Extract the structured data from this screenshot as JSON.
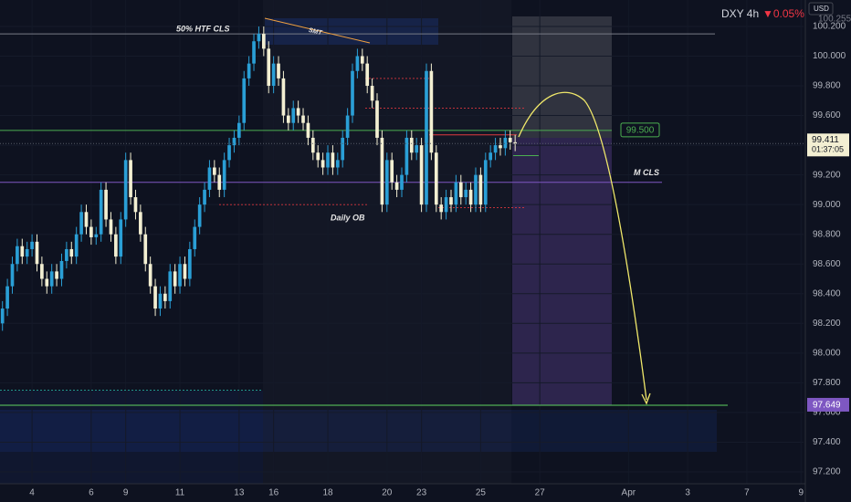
{
  "chart_data": {
    "type": "candlestick",
    "title": "DXY 4h",
    "change": "▼0.05%",
    "currency": "USD",
    "up_color": "#2a9fd6",
    "down_color": "#f3efd2",
    "xlim": [
      -0.5,
      162.5
    ],
    "ylim": [
      97.12,
      100.378
    ],
    "grid": true,
    "xticks": [
      {
        "value": 6,
        "label": "4"
      },
      {
        "value": 18,
        "label": "6"
      },
      {
        "value": 25,
        "label": "9"
      },
      {
        "value": 36,
        "label": "11"
      },
      {
        "value": 48,
        "label": "13"
      },
      {
        "value": 55,
        "label": "16"
      },
      {
        "value": 66,
        "label": "18"
      },
      {
        "value": 78,
        "label": "20"
      },
      {
        "value": 85,
        "label": "23"
      },
      {
        "value": 97,
        "label": "25"
      },
      {
        "value": 109,
        "label": "27"
      },
      {
        "value": 127,
        "label": "Apr"
      },
      {
        "value": 139,
        "label": "3"
      },
      {
        "value": 151,
        "label": "7"
      },
      {
        "value": 162,
        "label": "9"
      }
    ],
    "yticks": [
      {
        "value": 97.2,
        "label": "97.200"
      },
      {
        "value": 97.4,
        "label": "97.400"
      },
      {
        "value": 97.6,
        "label": "97.600"
      },
      {
        "value": 97.8,
        "label": "97.800"
      },
      {
        "value": 98.0,
        "label": "98.000"
      },
      {
        "value": 98.2,
        "label": "98.200"
      },
      {
        "value": 98.4,
        "label": "98.400"
      },
      {
        "value": 98.6,
        "label": "98.600"
      },
      {
        "value": 98.8,
        "label": "98.800"
      },
      {
        "value": 99.0,
        "label": "99.000"
      },
      {
        "value": 99.2,
        "label": "99.200"
      },
      {
        "value": 99.4,
        "label": "99.400"
      },
      {
        "value": 99.6,
        "label": "99.600"
      },
      {
        "value": 99.8,
        "label": "99.800"
      },
      {
        "value": 100.0,
        "label": "100.000"
      },
      {
        "value": 100.2,
        "label": "100.200"
      }
    ],
    "x": [
      0,
      1,
      2,
      3,
      4,
      5,
      6,
      7,
      8,
      9,
      10,
      11,
      12,
      13,
      14,
      15,
      16,
      17,
      18,
      19,
      20,
      21,
      22,
      23,
      24,
      25,
      26,
      27,
      28,
      29,
      30,
      31,
      32,
      33,
      34,
      35,
      36,
      37,
      38,
      39,
      40,
      41,
      42,
      43,
      44,
      45,
      46,
      47,
      48,
      49,
      50,
      51,
      52,
      53,
      54,
      55,
      56,
      57,
      58,
      59,
      60,
      61,
      62,
      63,
      64,
      65,
      66,
      67,
      68,
      69,
      70,
      71,
      72,
      73,
      74,
      75,
      76,
      77,
      78,
      79,
      80,
      81,
      82,
      83,
      84,
      85,
      86,
      87,
      88,
      89,
      90,
      91,
      92,
      93,
      94,
      95,
      96,
      97,
      98,
      99,
      100,
      101,
      102,
      103,
      104
    ],
    "open": [
      98.2,
      98.3,
      98.45,
      98.6,
      98.72,
      98.65,
      98.7,
      98.75,
      98.6,
      98.5,
      98.45,
      98.55,
      98.5,
      98.62,
      98.7,
      98.65,
      98.8,
      98.95,
      98.85,
      98.78,
      98.8,
      99.1,
      98.9,
      98.8,
      98.65,
      98.9,
      99.3,
      99.05,
      98.95,
      98.8,
      98.6,
      98.45,
      98.3,
      98.4,
      98.35,
      98.55,
      98.45,
      98.6,
      98.5,
      98.7,
      98.85,
      99.0,
      99.1,
      99.25,
      99.2,
      99.1,
      99.3,
      99.4,
      99.45,
      99.55,
      99.85,
      99.95,
      100.1,
      100.15,
      100.05,
      99.8,
      99.95,
      99.85,
      99.6,
      99.55,
      99.65,
      99.6,
      99.55,
      99.45,
      99.35,
      99.3,
      99.25,
      99.35,
      99.25,
      99.3,
      99.45,
      99.6,
      99.9,
      100.0,
      99.95,
      99.8,
      99.7,
      99.45,
      99.0,
      99.3,
      99.15,
      99.1,
      99.2,
      99.45,
      99.35,
      99.4,
      99.0,
      99.9,
      99.35,
      99.0,
      98.95,
      99.05,
      99.0,
      99.15,
      99.05,
      99.1,
      99.0,
      99.2,
      99.0,
      99.3,
      99.35,
      99.4,
      99.38,
      99.45,
      99.42
    ],
    "high": [
      98.35,
      98.5,
      98.65,
      98.77,
      98.77,
      98.75,
      98.8,
      98.8,
      98.65,
      98.55,
      98.6,
      98.6,
      98.67,
      98.75,
      98.75,
      98.85,
      99.0,
      99.0,
      98.9,
      98.85,
      99.15,
      99.15,
      98.95,
      98.85,
      98.95,
      99.35,
      99.35,
      99.1,
      99.0,
      98.85,
      98.65,
      98.5,
      98.45,
      98.45,
      98.6,
      98.6,
      98.65,
      98.65,
      98.75,
      98.9,
      99.05,
      99.15,
      99.3,
      99.3,
      99.25,
      99.35,
      99.45,
      99.5,
      99.6,
      99.9,
      100.0,
      100.15,
      100.2,
      100.2,
      100.1,
      100.0,
      100.0,
      99.9,
      99.65,
      99.7,
      99.7,
      99.65,
      99.6,
      99.5,
      99.4,
      99.35,
      99.4,
      99.4,
      99.35,
      99.5,
      99.65,
      99.95,
      100.05,
      100.05,
      100.0,
      99.85,
      99.75,
      99.5,
      99.35,
      99.35,
      99.2,
      99.25,
      99.5,
      99.5,
      99.45,
      99.45,
      99.95,
      99.95,
      99.4,
      99.05,
      99.1,
      99.1,
      99.2,
      99.2,
      99.15,
      99.15,
      99.25,
      99.25,
      99.35,
      99.4,
      99.45,
      99.45,
      99.5,
      99.5,
      99.47
    ],
    "low": [
      98.15,
      98.25,
      98.4,
      98.55,
      98.6,
      98.6,
      98.65,
      98.55,
      98.45,
      98.4,
      98.4,
      98.45,
      98.45,
      98.57,
      98.6,
      98.6,
      98.75,
      98.8,
      98.73,
      98.73,
      98.75,
      98.85,
      98.75,
      98.6,
      98.6,
      98.85,
      99.0,
      98.9,
      98.75,
      98.55,
      98.4,
      98.25,
      98.25,
      98.3,
      98.3,
      98.4,
      98.4,
      98.45,
      98.45,
      98.65,
      98.8,
      98.95,
      99.05,
      99.15,
      99.05,
      99.05,
      99.25,
      99.35,
      99.4,
      99.5,
      99.8,
      99.9,
      100.05,
      100.0,
      99.75,
      99.75,
      99.8,
      99.55,
      99.5,
      99.5,
      99.55,
      99.5,
      99.4,
      99.3,
      99.25,
      99.2,
      99.2,
      99.2,
      99.2,
      99.25,
      99.4,
      99.55,
      99.85,
      99.9,
      99.75,
      99.65,
      99.4,
      98.95,
      98.95,
      99.1,
      99.05,
      99.05,
      99.15,
      99.3,
      99.3,
      98.95,
      98.95,
      99.3,
      98.95,
      98.9,
      98.9,
      98.95,
      98.95,
      99.0,
      99.0,
      98.95,
      98.95,
      98.95,
      98.95,
      99.25,
      99.3,
      99.33,
      99.33,
      99.37,
      99.36
    ],
    "close": [
      98.3,
      98.45,
      98.6,
      98.72,
      98.65,
      98.7,
      98.75,
      98.6,
      98.5,
      98.45,
      98.55,
      98.5,
      98.62,
      98.7,
      98.65,
      98.8,
      98.95,
      98.85,
      98.78,
      98.8,
      99.1,
      98.9,
      98.8,
      98.65,
      98.9,
      99.3,
      99.05,
      98.95,
      98.8,
      98.6,
      98.45,
      98.3,
      98.4,
      98.35,
      98.55,
      98.45,
      98.6,
      98.5,
      98.7,
      98.85,
      99.0,
      99.1,
      99.25,
      99.2,
      99.1,
      99.3,
      99.4,
      99.45,
      99.55,
      99.85,
      99.95,
      100.1,
      100.15,
      100.05,
      99.8,
      99.95,
      99.85,
      99.6,
      99.55,
      99.65,
      99.6,
      99.55,
      99.45,
      99.35,
      99.3,
      99.25,
      99.35,
      99.25,
      99.3,
      99.45,
      99.6,
      99.9,
      100.0,
      99.95,
      99.8,
      99.7,
      99.45,
      99.0,
      99.3,
      99.15,
      99.1,
      99.2,
      99.45,
      99.35,
      99.4,
      99.0,
      99.9,
      99.35,
      99.0,
      98.95,
      99.05,
      99.0,
      99.15,
      99.05,
      99.1,
      99.0,
      99.2,
      99.0,
      99.3,
      99.35,
      99.4,
      99.38,
      99.45,
      99.42,
      99.411
    ],
    "close_label": "99.411",
    "countdown": "01:37:05",
    "top_price_label": "100.255",
    "levels": [
      {
        "value": 100.15,
        "color": "#787b86",
        "style": "solid"
      },
      {
        "value": 99.5,
        "color": "#4caf50",
        "style": "solid",
        "label": "99.500"
      },
      {
        "value": 99.15,
        "color": "#7e57c2",
        "style": "solid",
        "name": "M CLS"
      },
      {
        "value": 97.649,
        "color": "#5fd35f",
        "style": "solid",
        "label": "97.649"
      },
      {
        "value": 99.85,
        "color": "#d9363e",
        "style": "dotted"
      },
      {
        "value": 99.65,
        "color": "#d9363e",
        "style": "dotted"
      },
      {
        "value": 99.0,
        "color": "#d9363e",
        "style": "dotted",
        "name": "Daily OB"
      },
      {
        "value": 98.98,
        "color": "#d9363e",
        "style": "dotted"
      },
      {
        "value": 99.47,
        "color": "#e03a3e",
        "style": "solid"
      },
      {
        "value": 99.33,
        "color": "#4caf50",
        "style": "solid"
      },
      {
        "value": 97.75,
        "color": "#26a69a",
        "style": "dotted"
      }
    ],
    "annotations": {
      "htf": "50% HTF CLS",
      "smt": "SMT"
    }
  }
}
